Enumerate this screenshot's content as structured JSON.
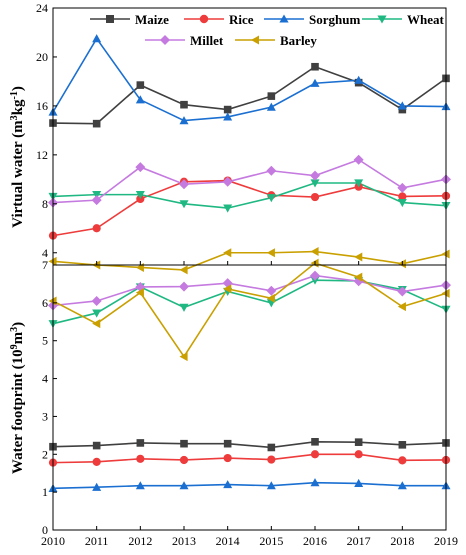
{
  "chart_data": [
    {
      "type": "line",
      "ylabel_main": "Virtual water (m",
      "ylabel_sup1": "3",
      "ylabel_mid": "kg",
      "ylabel_sup2": "-1",
      "ylabel_end": ")",
      "ylim": [
        3,
        24
      ],
      "y_ticks": [
        "4",
        "8",
        "12",
        "16",
        "20",
        "24"
      ],
      "x": [
        "2010",
        "2011",
        "2012",
        "2013",
        "2014",
        "2015",
        "2016",
        "2017",
        "2018",
        "2019"
      ],
      "legend_position": "top",
      "series": [
        {
          "name": "Maize",
          "color": "#404040",
          "marker": "square",
          "values": [
            14.6,
            14.55,
            17.7,
            16.1,
            15.7,
            16.8,
            19.2,
            17.9,
            15.7,
            18.25
          ]
        },
        {
          "name": "Rice",
          "color": "#ee3b3b",
          "marker": "circle",
          "values": [
            5.4,
            6.0,
            8.4,
            9.8,
            9.9,
            8.7,
            8.55,
            9.4,
            8.6,
            8.65
          ]
        },
        {
          "name": "Sorghum",
          "color": "#1a6fd1",
          "marker": "triangle-up",
          "values": [
            15.5,
            21.5,
            16.5,
            14.8,
            15.1,
            15.9,
            17.85,
            18.1,
            16.0,
            15.95
          ]
        },
        {
          "name": "Wheat",
          "color": "#1fb882",
          "marker": "triangle-down",
          "values": [
            8.6,
            8.75,
            8.75,
            8.0,
            7.65,
            8.5,
            9.7,
            9.7,
            8.1,
            7.85
          ]
        },
        {
          "name": "Millet",
          "color": "#c57ae0",
          "marker": "diamond",
          "values": [
            8.1,
            8.3,
            11.0,
            9.6,
            9.8,
            10.7,
            10.3,
            11.6,
            9.3,
            10.0
          ]
        },
        {
          "name": "Barley",
          "color": "#c9a000",
          "marker": "triangle-left",
          "values": [
            3.3,
            3.0,
            2.8,
            2.6,
            4.0,
            4.0,
            4.1,
            3.65,
            3.1,
            3.9
          ]
        }
      ]
    },
    {
      "type": "line",
      "ylabel_main": "Water footprint (10",
      "ylabel_sup1": "9",
      "ylabel_mid": "m",
      "ylabel_sup2": "3",
      "ylabel_end": ")",
      "ylim": [
        0,
        7
      ],
      "y_ticks": [
        "0",
        "1",
        "2",
        "3",
        "4",
        "5",
        "6",
        "7"
      ],
      "x": [
        "2010",
        "2011",
        "2012",
        "2013",
        "2014",
        "2015",
        "2016",
        "2017",
        "2018",
        "2019"
      ],
      "x_tick_labels": [
        "2010",
        "2011",
        "2012",
        "2013",
        "2014",
        "2015",
        "2016",
        "2017",
        "2018",
        "2019"
      ],
      "series": [
        {
          "name": "Maize",
          "color": "#404040",
          "marker": "square",
          "values": [
            2.2,
            2.23,
            2.3,
            2.28,
            2.28,
            2.18,
            2.33,
            2.32,
            2.25,
            2.3
          ]
        },
        {
          "name": "Rice",
          "color": "#ee3b3b",
          "marker": "circle",
          "values": [
            1.78,
            1.8,
            1.88,
            1.85,
            1.9,
            1.86,
            2.0,
            2.0,
            1.84,
            1.85
          ]
        },
        {
          "name": "Sorghum",
          "color": "#1a6fd1",
          "marker": "triangle-up",
          "values": [
            1.1,
            1.13,
            1.17,
            1.17,
            1.2,
            1.17,
            1.25,
            1.23,
            1.17,
            1.17
          ]
        },
        {
          "name": "Wheat",
          "color": "#1fb882",
          "marker": "triangle-down",
          "values": [
            5.45,
            5.73,
            6.42,
            5.88,
            6.3,
            6.0,
            6.6,
            6.58,
            6.35,
            5.83
          ]
        },
        {
          "name": "Millet",
          "color": "#c57ae0",
          "marker": "diamond",
          "values": [
            5.93,
            6.05,
            6.42,
            6.43,
            6.52,
            6.32,
            6.72,
            6.57,
            6.3,
            6.47
          ]
        },
        {
          "name": "Barley",
          "color": "#c9a000",
          "marker": "triangle-left",
          "values": [
            6.05,
            5.45,
            6.27,
            4.58,
            6.37,
            6.12,
            7.05,
            6.68,
            5.9,
            6.25
          ]
        }
      ]
    }
  ]
}
